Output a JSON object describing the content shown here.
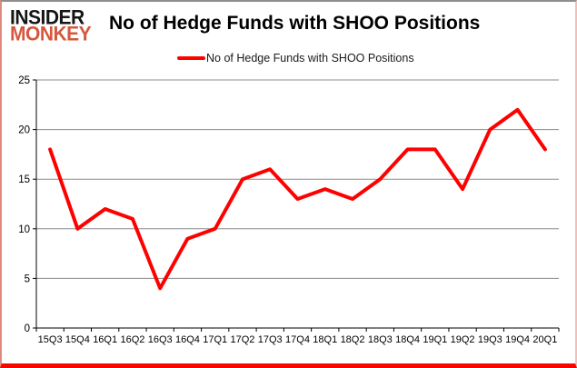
{
  "logo": {
    "line1": "INSIDER",
    "line2": "MONKEY"
  },
  "header": {
    "title": "No of Hedge Funds with SHOO Positions"
  },
  "legend": {
    "label": "No of Hedge Funds with SHOO Positions"
  },
  "colors": {
    "line_red": "#FF0000",
    "logo_red": "#D5573E",
    "gridline_gray": "#8C8C8C",
    "axis_black": "#000000"
  },
  "chart_data": {
    "type": "line",
    "title": "No of Hedge Funds with SHOO Positions",
    "series": [
      {
        "name": "No of Hedge Funds with SHOO Positions",
        "values": [
          18,
          10,
          12,
          11,
          4,
          9,
          10,
          15,
          16,
          13,
          14,
          13,
          15,
          18,
          18,
          14,
          20,
          22,
          18
        ]
      }
    ],
    "categories": [
      "15Q3",
      "15Q4",
      "16Q1",
      "16Q2",
      "16Q3",
      "16Q4",
      "17Q1",
      "17Q2",
      "17Q3",
      "17Q4",
      "18Q1",
      "18Q2",
      "18Q3",
      "18Q4",
      "19Q1",
      "19Q2",
      "19Q3",
      "19Q4",
      "20Q1"
    ],
    "xlabel": "",
    "ylabel": "",
    "ylim": [
      0,
      25
    ],
    "yticks": [
      0,
      5,
      10,
      15,
      20,
      25
    ],
    "grid": true,
    "legend_position": "top",
    "line_color": "#FF0000",
    "gridline_color": "#8C8C8C"
  }
}
